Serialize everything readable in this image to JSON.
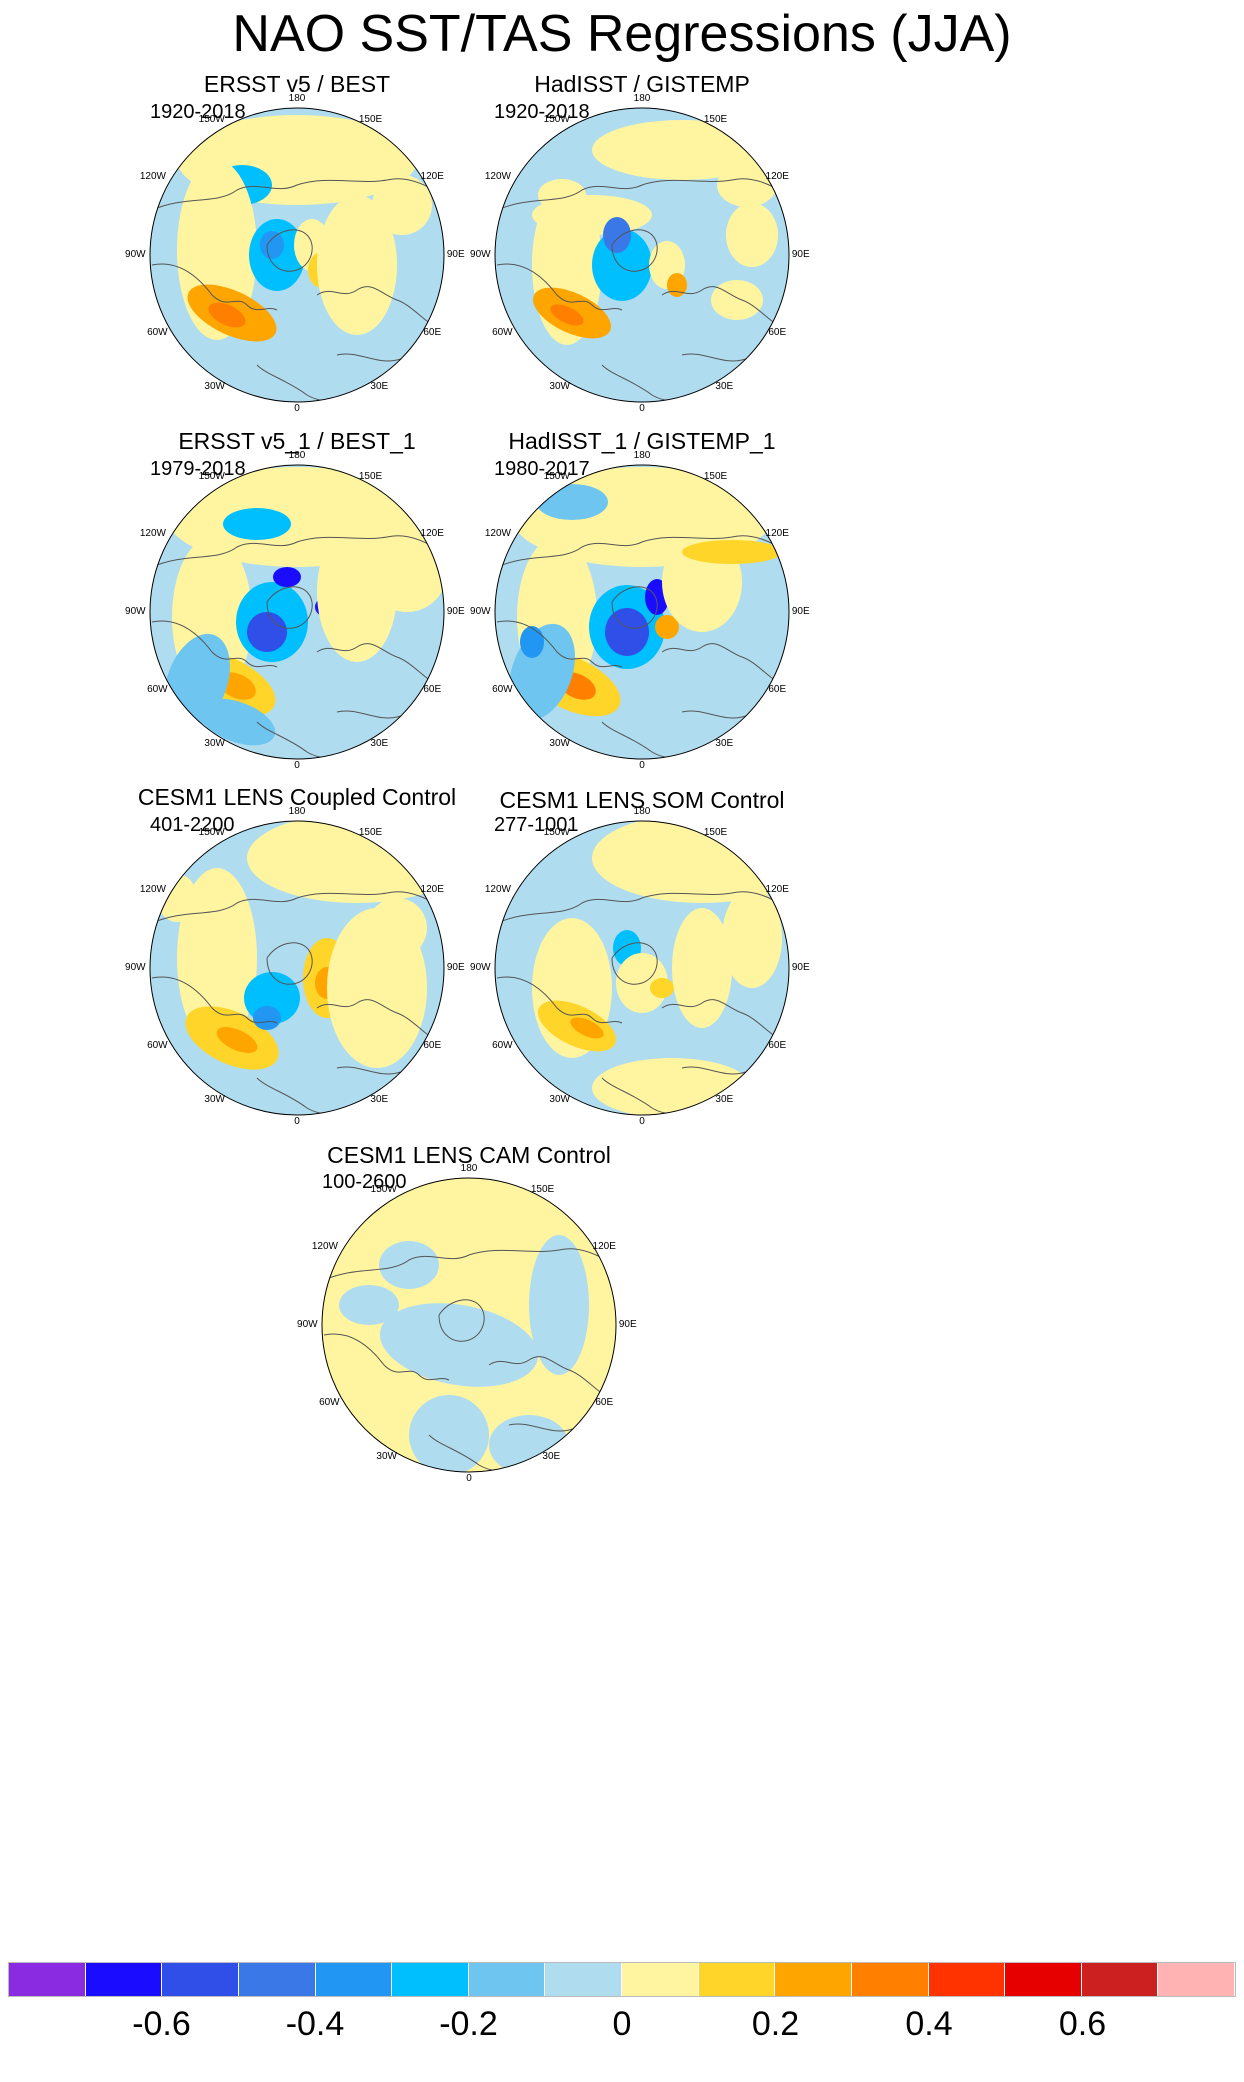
{
  "title": "NAO SST/TAS Regressions (JJA)",
  "longitude_labels": {
    "lon_0": "0",
    "lon_30e": "30E",
    "lon_60e": "60E",
    "lon_90e": "90E",
    "lon_120e": "120E",
    "lon_150e": "150E",
    "lon_180": "180",
    "lon_150w": "150W",
    "lon_120w": "120W",
    "lon_90w": "90W",
    "lon_60w": "60W",
    "lon_30w": "30W"
  },
  "panels": [
    {
      "title": "ERSST v5 / BEST",
      "period": "1920-2018"
    },
    {
      "title": "HadISST / GISTEMP",
      "period": "1920-2018"
    },
    {
      "title": "ERSST v5_1 / BEST_1",
      "period": "1979-2018"
    },
    {
      "title": "HadISST_1 / GISTEMP_1",
      "period": "1980-2017"
    },
    {
      "title": "CESM1 LENS Coupled Control",
      "period": "401-2200"
    },
    {
      "title": "CESM1 LENS SOM Control",
      "period": "277-1001"
    },
    {
      "title": "CESM1 LENS CAM Control",
      "period": "100-2600"
    }
  ],
  "colorbar": {
    "colors": [
      "#8a2be2",
      "#1a0dff",
      "#2f4fe8",
      "#3a78e8",
      "#2196f3",
      "#00bfff",
      "#6ec6f0",
      "#b0dcf0",
      "#fff5a0",
      "#ffd52a",
      "#ffa500",
      "#ff7f00",
      "#ff3300",
      "#e60000",
      "#cc1f1f",
      "#ffb3b3"
    ],
    "tick_labels": [
      "-0.6",
      "-0.4",
      "-0.2",
      "0",
      "0.2",
      "0.4",
      "0.6"
    ],
    "tick_values": [
      -0.6,
      -0.4,
      -0.2,
      0,
      0.2,
      0.4,
      0.6
    ]
  },
  "legend_colors": {
    "ocean_neg_small": "#b0dcf0",
    "pos_small": "#fff5a0",
    "coast": "#555555"
  }
}
